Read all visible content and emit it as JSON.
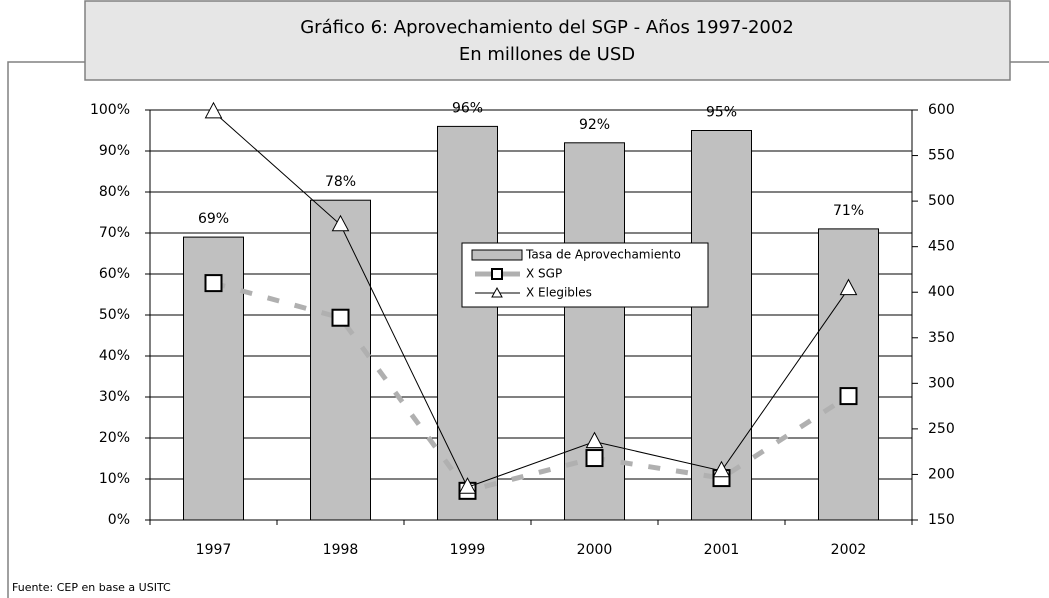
{
  "chart_data": {
    "type": "bar_line",
    "title": "Gráfico 6: Aprovechamiento del SGP - Años 1997-2002",
    "subtitle": "En millones de USD",
    "source": "Fuente: CEP en base a USITC",
    "categories": [
      "1997",
      "1998",
      "1999",
      "2000",
      "2001",
      "2002"
    ],
    "series": [
      {
        "name": "Tasa de Aprovechamiento",
        "type": "bar",
        "color": "#c0c0c0",
        "values": [
          69,
          78,
          96,
          92,
          95,
          71
        ],
        "value_labels": [
          "69%",
          "78%",
          "96%",
          "92%",
          "95%",
          "71%"
        ]
      },
      {
        "name": "X SGP",
        "type": "line",
        "axis": "y2",
        "color": "#b0b0b0",
        "marker": "square",
        "values": [
          410,
          372,
          182,
          218,
          196,
          286
        ]
      },
      {
        "name": "X Elegibles",
        "type": "line",
        "axis": "y2",
        "color": "#000000",
        "marker": "triangle",
        "values": [
          598,
          474,
          186,
          236,
          204,
          404
        ]
      }
    ],
    "ylim": [
      0,
      100
    ],
    "yticks": [
      {
        "value": 0,
        "label": "0%"
      },
      {
        "value": 10,
        "label": "10%"
      },
      {
        "value": 20,
        "label": "20%"
      },
      {
        "value": 30,
        "label": "30%"
      },
      {
        "value": 40,
        "label": "40%"
      },
      {
        "value": 50,
        "label": "50%"
      },
      {
        "value": 60,
        "label": "60%"
      },
      {
        "value": 70,
        "label": "70%"
      },
      {
        "value": 80,
        "label": "80%"
      },
      {
        "value": 90,
        "label": "90%"
      },
      {
        "value": 100,
        "label": "100%"
      }
    ],
    "y2lim": [
      150,
      600
    ],
    "y2ticks": [
      150,
      200,
      250,
      300,
      350,
      400,
      450,
      500,
      550,
      600
    ],
    "grid": true
  }
}
